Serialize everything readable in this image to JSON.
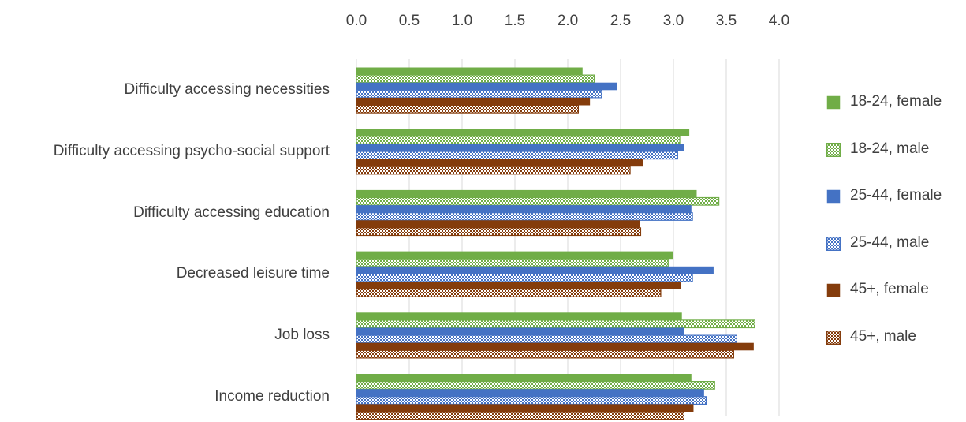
{
  "chart_data": {
    "type": "bar",
    "orientation": "horizontal",
    "title": "",
    "xlabel": "",
    "ylabel": "",
    "xlim": [
      0,
      4
    ],
    "x_ticks": [
      "0.0",
      "0.5",
      "1.0",
      "1.5",
      "2.0",
      "2.5",
      "3.0",
      "3.5",
      "4.0"
    ],
    "x_axis_position": "top",
    "grid": "vertical",
    "legend_position": "right",
    "categories": [
      "Difficulty accessing necessities",
      "Difficulty accessing psycho-social support",
      "Difficulty accessing education",
      "Decreased leisure time",
      "Job loss",
      "Income reduction"
    ],
    "series": [
      {
        "name": "18-24, female",
        "color": "#70ad47",
        "pattern": "solid",
        "values": [
          2.14,
          3.15,
          3.22,
          3.0,
          3.08,
          3.17
        ]
      },
      {
        "name": "18-24, male",
        "color": "#70ad47",
        "pattern": "checker",
        "values": [
          2.25,
          3.06,
          3.43,
          2.95,
          3.77,
          3.39
        ]
      },
      {
        "name": "25-44, female",
        "color": "#4472c4",
        "pattern": "solid",
        "values": [
          2.47,
          3.1,
          3.17,
          3.38,
          3.1,
          3.29
        ]
      },
      {
        "name": "25-44, male",
        "color": "#4472c4",
        "pattern": "checker",
        "values": [
          2.32,
          3.04,
          3.18,
          3.18,
          3.6,
          3.31
        ]
      },
      {
        "name": "45+, female",
        "color": "#843c0c",
        "pattern": "solid",
        "values": [
          2.21,
          2.71,
          2.68,
          3.07,
          3.76,
          3.19
        ]
      },
      {
        "name": "45+, male",
        "color": "#843c0c",
        "pattern": "checker",
        "values": [
          2.1,
          2.59,
          2.69,
          2.88,
          3.57,
          3.1
        ]
      }
    ]
  }
}
